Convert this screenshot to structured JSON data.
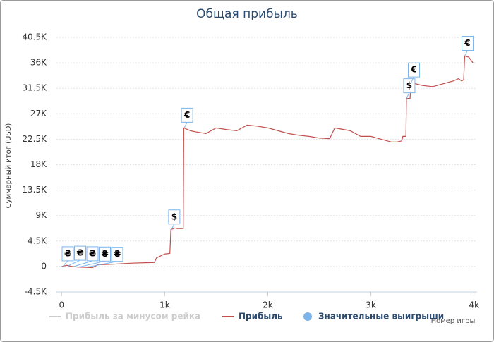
{
  "chart_data": {
    "type": "line",
    "title": "Общая прибыль",
    "ylabel": "Суммарный итог (USD)",
    "xlabel": "Номер игры",
    "xlim": [
      -50,
      4030
    ],
    "ylim": [
      -4500,
      40500
    ],
    "xticks": [
      {
        "value": 0,
        "label": "0"
      },
      {
        "value": 1000,
        "label": "1k"
      },
      {
        "value": 2000,
        "label": "2k"
      },
      {
        "value": 3000,
        "label": "3k"
      },
      {
        "value": 4000,
        "label": "4k"
      }
    ],
    "yticks": [
      {
        "value": -4500,
        "label": "-4.5K"
      },
      {
        "value": 0,
        "label": "0"
      },
      {
        "value": 4500,
        "label": "4.5K"
      },
      {
        "value": 9000,
        "label": "9K"
      },
      {
        "value": 13500,
        "label": "13.5K"
      },
      {
        "value": 18000,
        "label": "18K"
      },
      {
        "value": 22500,
        "label": "22.5K"
      },
      {
        "value": 27000,
        "label": "27K"
      },
      {
        "value": 31500,
        "label": "31.5K"
      },
      {
        "value": 36000,
        "label": "36K"
      },
      {
        "value": 40500,
        "label": "40.5K"
      }
    ],
    "grid": true,
    "series": [
      {
        "name": "Прибыль за минусом рейка",
        "color": "#cccccc",
        "visible": false
      },
      {
        "name": "Прибыль",
        "color": "#c0504d",
        "x": [
          0,
          50,
          100,
          150,
          300,
          350,
          500,
          700,
          900,
          920,
          1000,
          1050,
          1060,
          1100,
          1120,
          1180,
          1185,
          1250,
          1300,
          1400,
          1500,
          1600,
          1700,
          1800,
          1900,
          2000,
          2100,
          2200,
          2300,
          2400,
          2500,
          2600,
          2650,
          2800,
          2900,
          3000,
          3100,
          3200,
          3250,
          3300,
          3310,
          3340,
          3345,
          3380,
          3390,
          3500,
          3600,
          3700,
          3800,
          3850,
          3880,
          3900,
          3910,
          3950,
          3990
        ],
        "values": [
          0,
          200,
          0,
          -100,
          -200,
          300,
          400,
          600,
          700,
          1500,
          2200,
          2300,
          6500,
          6800,
          6700,
          6700,
          24500,
          24000,
          23800,
          23500,
          24500,
          24200,
          24000,
          25000,
          24800,
          24500,
          24000,
          23500,
          23200,
          23000,
          22700,
          22600,
          24500,
          24000,
          23000,
          23000,
          22500,
          22000,
          22000,
          22200,
          23000,
          23000,
          29700,
          29700,
          32500,
          32000,
          31800,
          32300,
          32800,
          33200,
          32800,
          33000,
          37200,
          37000,
          36000
        ]
      }
    ],
    "flags": {
      "name": "Значительные выигрыши",
      "color": "#7cb5ec",
      "x": [
        10,
        60,
        120,
        180,
        250,
        1065,
        1190,
        3345,
        3390,
        3910
      ],
      "values": [
        0,
        100,
        0,
        -50,
        -100,
        6500,
        24500,
        29700,
        32500,
        37200
      ],
      "labels": [
        "₴",
        "₴",
        "₴",
        "₴",
        "₴",
        "$",
        "€",
        "$",
        "€",
        "€"
      ]
    }
  }
}
